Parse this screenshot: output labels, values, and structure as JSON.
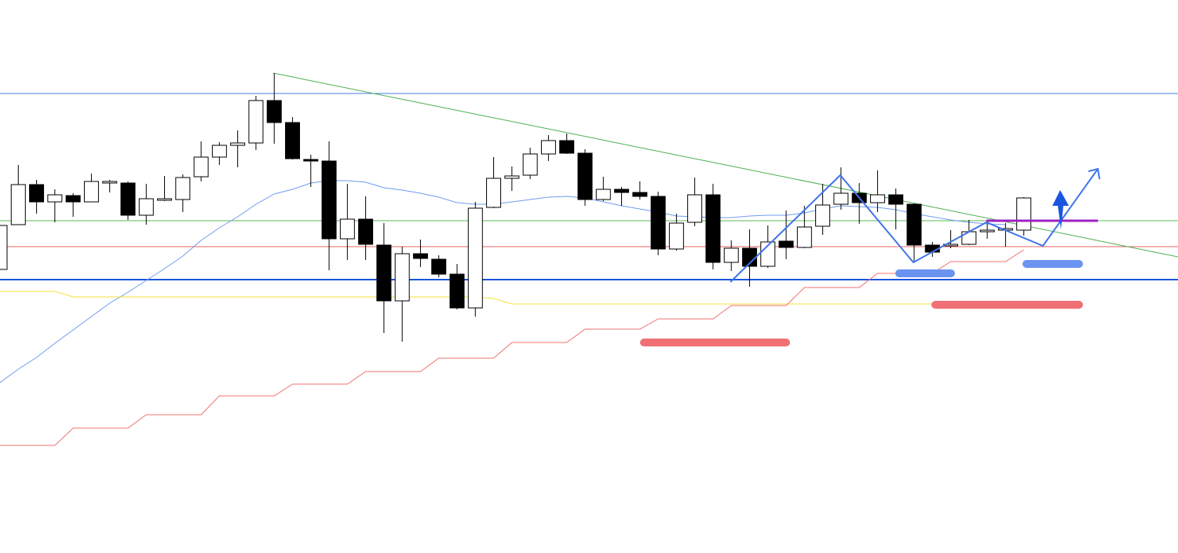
{
  "chart_data": {
    "type": "candlestick",
    "ylim": [
      0,
      704
    ],
    "up_color": "#ffffff",
    "down_color": "#000000",
    "edge_color": "#000000",
    "open": [
      361,
      418,
      469,
      447,
      455,
      447,
      471,
      471,
      430,
      449,
      450,
      479,
      504,
      519,
      522,
      576,
      548,
      501,
      499,
      400,
      425,
      392,
      321,
      381,
      374,
      355,
      312,
      440,
      477,
      481,
      508,
      525,
      509,
      450,
      463,
      459,
      454,
      387,
      421,
      456,
      370,
      388,
      365,
      397,
      389,
      416,
      444,
      458,
      446,
      456,
      444,
      392,
      391,
      393,
      409,
      411,
      411
    ],
    "high": [
      417,
      494,
      475,
      463,
      458,
      483,
      475,
      473,
      470,
      480,
      482,
      524,
      523,
      538,
      582,
      611,
      555,
      507,
      524,
      470,
      454,
      420,
      390,
      399,
      379,
      368,
      447,
      504,
      492,
      516,
      532,
      534,
      514,
      479,
      466,
      473,
      460,
      432,
      478,
      470,
      398,
      412,
      417,
      436,
      442,
      470,
      491,
      471,
      487,
      464,
      445,
      396,
      411,
      424,
      420,
      420,
      453
    ],
    "low": [
      361,
      418,
      432,
      421,
      428,
      447,
      459,
      424,
      418,
      448,
      434,
      473,
      494,
      491,
      513,
      521,
      501,
      466,
      360,
      373,
      373,
      280,
      269,
      364,
      351,
      310,
      301,
      439,
      461,
      476,
      499,
      508,
      442,
      448,
      442,
      450,
      379,
      385,
      416,
      361,
      359,
      339,
      363,
      374,
      388,
      405,
      437,
      419,
      434,
      412,
      370,
      377,
      388,
      392,
      400,
      390,
      404
    ],
    "close": [
      417,
      469,
      447,
      456,
      447,
      473,
      473,
      430,
      451,
      451,
      478,
      504,
      519,
      522,
      576,
      548,
      502,
      499,
      400,
      425,
      393,
      321,
      381,
      375,
      355,
      312,
      439,
      477,
      480,
      508,
      525,
      509,
      450,
      463,
      459,
      454,
      387,
      420,
      456,
      370,
      388,
      365,
      396,
      389,
      415,
      443,
      458,
      446,
      456,
      444,
      392,
      383,
      393,
      409,
      411,
      413,
      452
    ],
    "series": [
      {
        "type": "line",
        "color": "#6f9cf0",
        "values": [
          217,
          234,
          249,
          267,
          284,
          301,
          318,
          332,
          347,
          362,
          378,
          398,
          414,
          428,
          444,
          457,
          463,
          471,
          474,
          474,
          472,
          465,
          462,
          458,
          453,
          446,
          444,
          444,
          447,
          450,
          453,
          454,
          452,
          447,
          442,
          438,
          434,
          429,
          428,
          427,
          427,
          429,
          430,
          430,
          433,
          438,
          442,
          441,
          440,
          437,
          432,
          428,
          424,
          421,
          419,
          418,
          null
        ]
      },
      {
        "type": "line",
        "color": "#f5e23a",
        "values": [
          333,
          333,
          333,
          333,
          326,
          326,
          326,
          326,
          326,
          326,
          326,
          326,
          326,
          326,
          326,
          326,
          326,
          326,
          326,
          326,
          326,
          326,
          326,
          326,
          326,
          326,
          326,
          324,
          317,
          317,
          317,
          317,
          317,
          317,
          317,
          317,
          317,
          317,
          317,
          317,
          317,
          317,
          317,
          317,
          317,
          317,
          317,
          317,
          317,
          317,
          317,
          317,
          317,
          317,
          317,
          317,
          317
        ]
      },
      {
        "type": "line",
        "color": "#f07070",
        "values": [
          137,
          137,
          137,
          137,
          159,
          159,
          159,
          159,
          176,
          176,
          176,
          176,
          200,
          200,
          200,
          200,
          215,
          215,
          215,
          215,
          231,
          231,
          231,
          231,
          248,
          248,
          248,
          248,
          268,
          268,
          268,
          268,
          285,
          285,
          285,
          285,
          298,
          298,
          298,
          298,
          315,
          315,
          315,
          315,
          338,
          338,
          338,
          338,
          356,
          356,
          356,
          356,
          371,
          371,
          371,
          371,
          386
        ]
      }
    ]
  }
}
